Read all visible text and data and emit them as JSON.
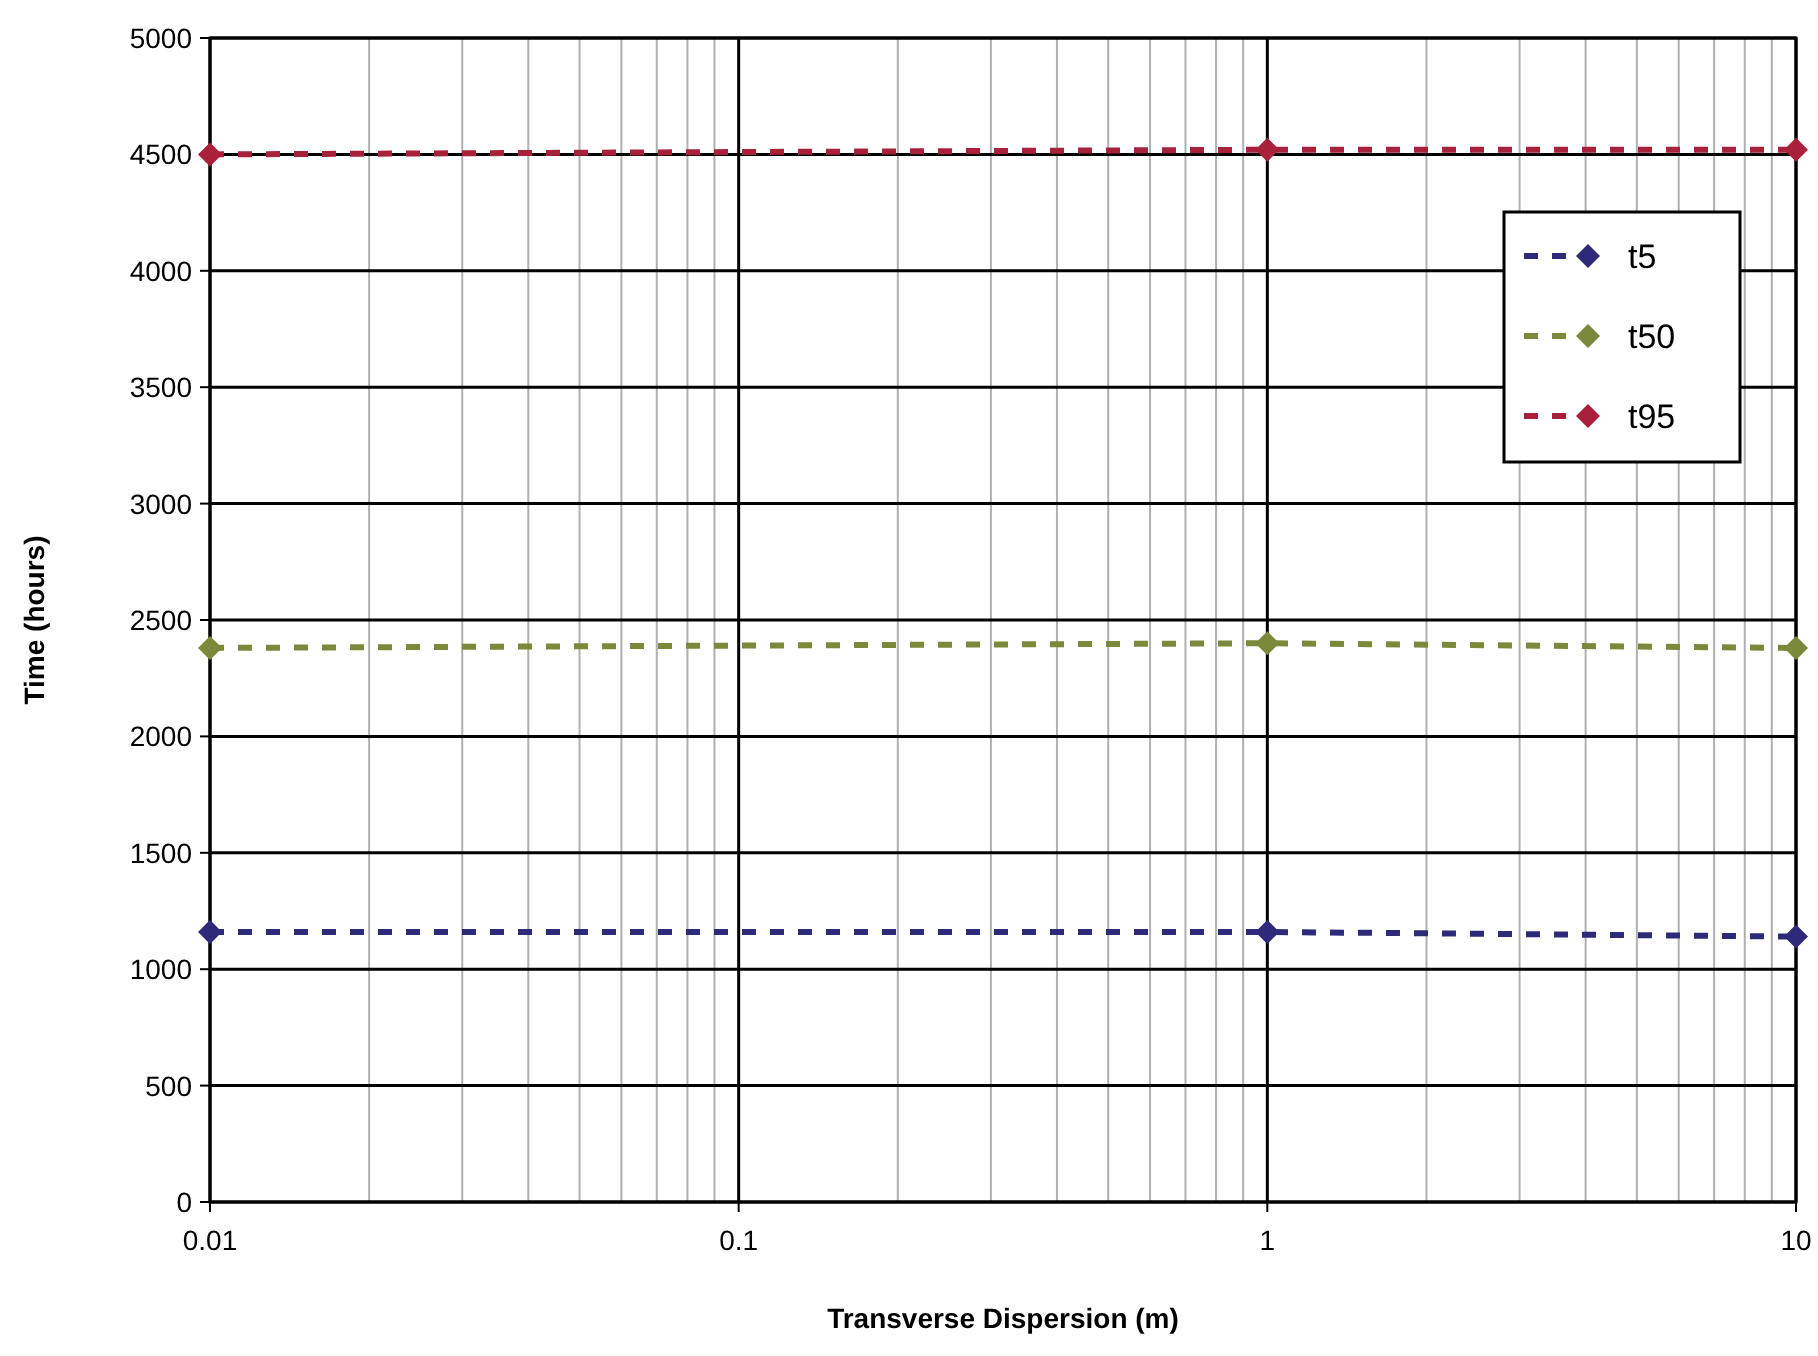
{
  "chart_data": {
    "type": "line",
    "xlabel": "Transverse Dispersion (m)",
    "ylabel": "Time (hours)",
    "log": "x",
    "grid": true,
    "legend": "top right",
    "marker": "diamond",
    "line_style": "dashed",
    "x": [
      0.01,
      1,
      10
    ],
    "xlim": [
      0.01,
      10
    ],
    "xticks": [
      0.01,
      {
        "value": 0.02,
        "label": null
      },
      {
        "value": 0.03,
        "label": null
      },
      {
        "value": 0.04,
        "label": null
      },
      {
        "value": 0.05,
        "label": null
      },
      {
        "value": 0.06,
        "label": null
      },
      {
        "value": 0.07,
        "label": null
      },
      {
        "value": 0.08,
        "label": null
      },
      {
        "value": 0.09,
        "label": null
      },
      0.1,
      {
        "value": 0.2,
        "label": null
      },
      {
        "value": 0.3,
        "label": null
      },
      {
        "value": 0.4,
        "label": null
      },
      {
        "value": 0.5,
        "label": null
      },
      {
        "value": 0.6,
        "label": null
      },
      {
        "value": 0.7,
        "label": null
      },
      {
        "value": 0.8,
        "label": null
      },
      {
        "value": 0.9,
        "label": null
      },
      1,
      {
        "value": 2,
        "label": null
      },
      {
        "value": 3,
        "label": null
      },
      {
        "value": 4,
        "label": null
      },
      {
        "value": 5,
        "label": null
      },
      {
        "value": 6,
        "label": null
      },
      {
        "value": 7,
        "label": null
      },
      {
        "value": 8,
        "label": null
      },
      {
        "value": 9,
        "label": null
      },
      10
    ],
    "ylim": [
      0,
      5000
    ],
    "yticks": [
      0,
      500,
      1000,
      1500,
      2000,
      2500,
      3000,
      3500,
      4000,
      4500,
      5000
    ],
    "series": [
      {
        "name": "t5",
        "color": "#2e2a7a",
        "values": [
          1160,
          1160,
          1140
        ]
      },
      {
        "name": "t50",
        "color": "#7a8a3a",
        "values": [
          2380,
          2400,
          2380
        ]
      },
      {
        "name": "t95",
        "color": "#a8203a",
        "values": [
          4500,
          4520,
          4520
        ]
      }
    ]
  }
}
